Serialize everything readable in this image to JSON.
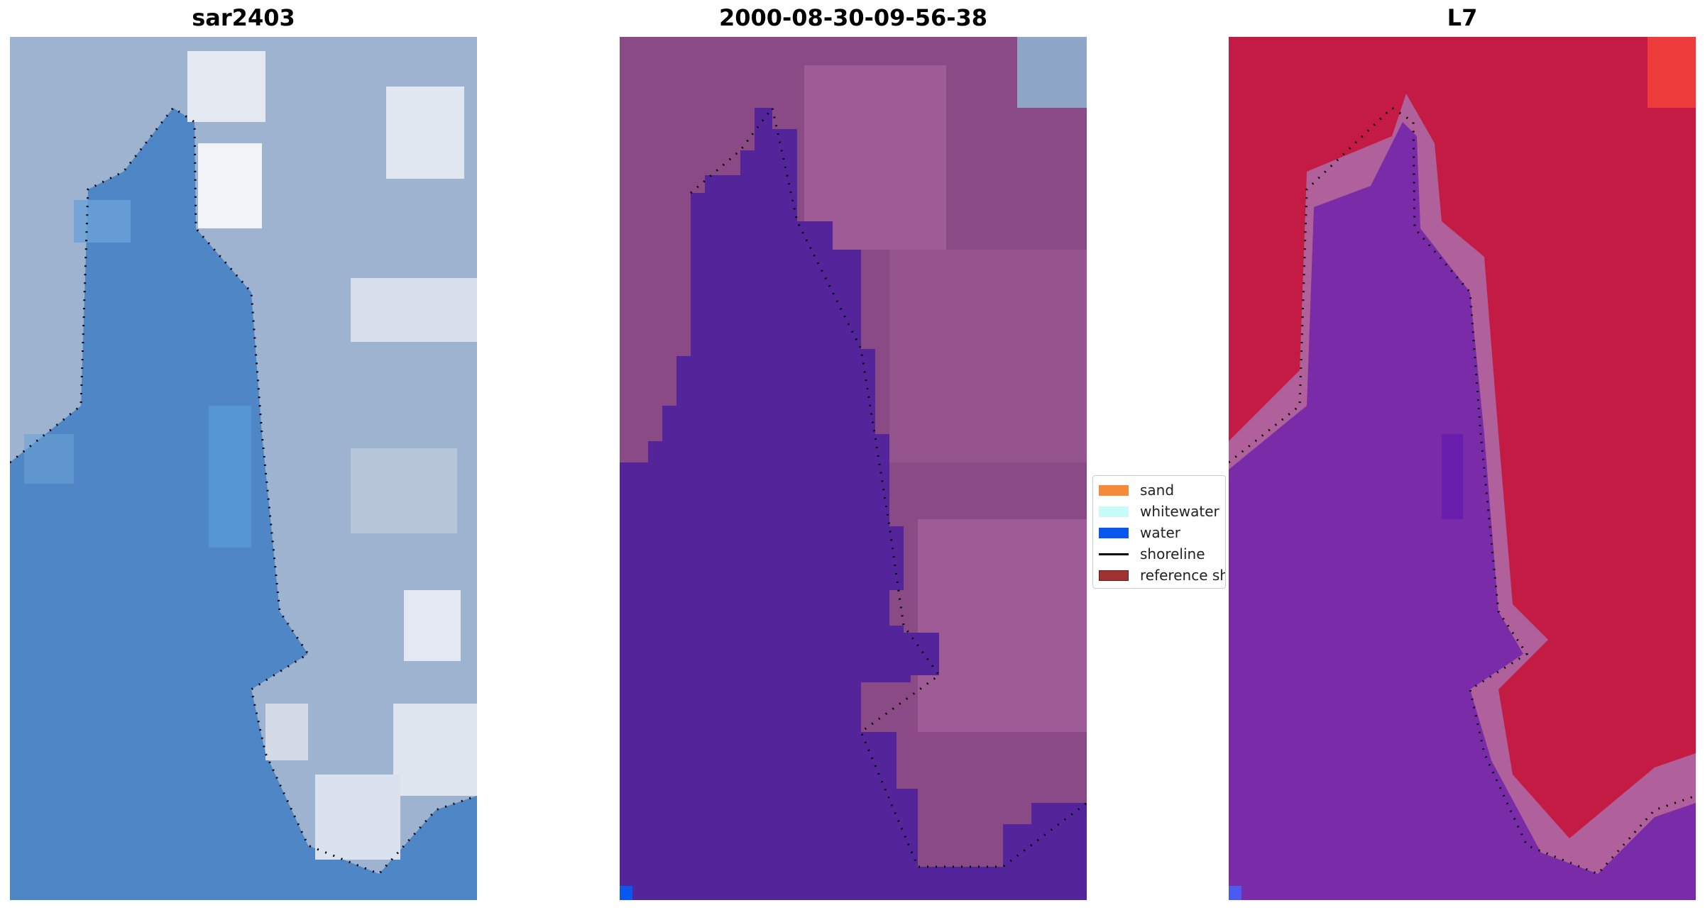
{
  "panels": [
    {
      "title": "sar2403",
      "content": "RGB satellite image with detected shoreline"
    },
    {
      "title": "2000-08-30-09-56-38",
      "content": "classified image: sand/whitewater/water with shoreline"
    },
    {
      "title": "L7",
      "content": "MNDWI-style index image with shoreline"
    }
  ],
  "legend": {
    "items": [
      {
        "label": "sand",
        "color": "#f58a3a",
        "kind": "patch"
      },
      {
        "label": "whitewater",
        "color": "#c9fbf8",
        "kind": "patch"
      },
      {
        "label": "water",
        "color": "#0a57f0",
        "kind": "patch"
      },
      {
        "label": "shoreline",
        "color": "#000000",
        "kind": "line"
      },
      {
        "label": "reference shoreline",
        "color": "#a03232",
        "kind": "patch"
      }
    ]
  },
  "colors": {
    "rgb_water": "#4f86c6",
    "rgb_land": "#9db3cf",
    "rgb_cloud": "#e9ecf4",
    "class_land": "#8a4a86",
    "class_land_light": "#ad6aa3",
    "class_water": "#53249a",
    "index_land": "#c41b44",
    "index_water": "#7a2ca8",
    "index_edge": "#b0609a"
  }
}
